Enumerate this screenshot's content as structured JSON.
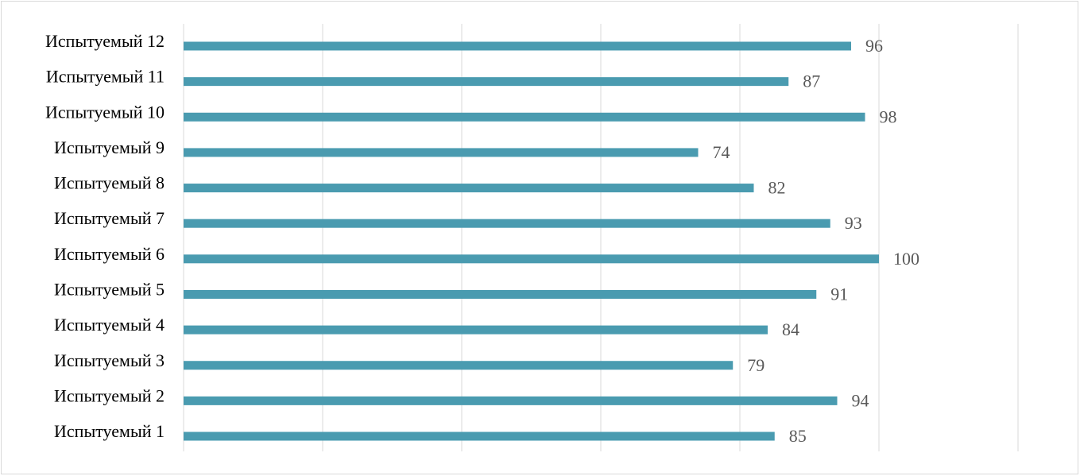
{
  "chart_data": {
    "type": "barh",
    "categories": [
      "Испытуемый 1",
      "Испытуемый 2",
      "Испытуемый 3",
      "Испытуемый 4",
      "Испытуемый 5",
      "Испытуемый 6",
      "Испытуемый 7",
      "Испытуемый 8",
      "Испытуемый 9",
      "Испытуемый 10",
      "Испытуемый 11",
      "Испытуемый 12"
    ],
    "values": [
      85,
      94,
      79,
      84,
      91,
      100,
      93,
      82,
      74,
      98,
      87,
      96
    ],
    "color": "#4a9bb0",
    "xlim": [
      0,
      120
    ],
    "xticks": [
      0,
      20,
      40,
      60,
      80,
      100,
      120
    ],
    "grid": true
  }
}
